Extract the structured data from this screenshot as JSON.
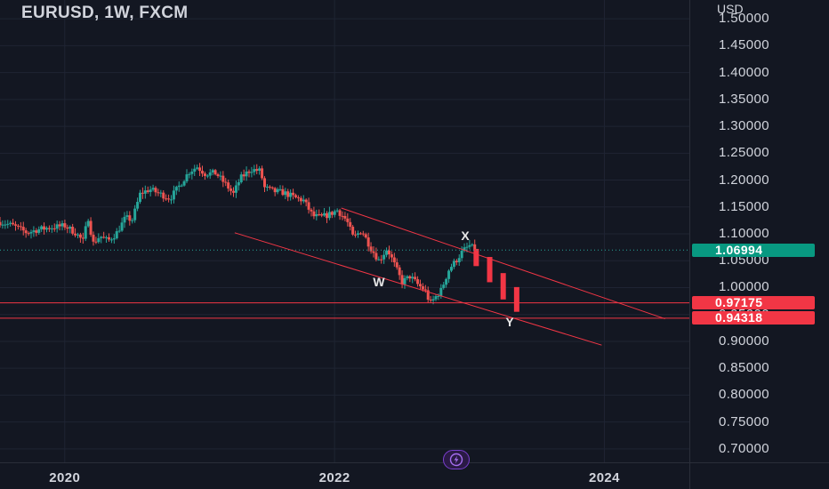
{
  "header": {
    "title": "EURUSD, 1W, FXCM",
    "currency": "USD"
  },
  "price_labels": [
    {
      "value": "1.06994",
      "color": "#089981"
    },
    {
      "value": "0.97175",
      "color": "#f23645"
    },
    {
      "value": "0.94318",
      "color": "#f23645"
    }
  ],
  "badge": {
    "icon": "lightning-icon",
    "color": "#a66ff0"
  },
  "colors": {
    "bull": "#26a69a",
    "bear": "#ef5350",
    "line": "#f23645",
    "background": "#131722"
  },
  "chart_data": {
    "type": "candlestick",
    "symbol": "EURUSD",
    "interval": "1W",
    "source": "FXCM",
    "y_axis": {
      "range": [
        0.675,
        1.535
      ],
      "ticks": [
        "1.50000",
        "1.45000",
        "1.40000",
        "1.35000",
        "1.30000",
        "1.25000",
        "1.20000",
        "1.15000",
        "1.10000",
        "1.05000",
        "1.00000",
        "0.95000",
        "0.90000",
        "0.85000",
        "0.80000",
        "0.75000",
        "0.70000"
      ],
      "side": "right"
    },
    "x_axis": {
      "range": [
        2019.52,
        2024.63
      ],
      "ticks": [
        {
          "label": "2020",
          "value": 2020
        },
        {
          "label": "2022",
          "value": 2022
        },
        {
          "label": "2024",
          "value": 2024
        }
      ]
    },
    "grid": true,
    "price_path": [
      [
        2019.52,
        1.122
      ],
      [
        2019.62,
        1.115
      ],
      [
        2019.72,
        1.102
      ],
      [
        2019.8,
        1.108
      ],
      [
        2019.9,
        1.112
      ],
      [
        2020.0,
        1.115
      ],
      [
        2020.08,
        1.102
      ],
      [
        2020.14,
        1.085
      ],
      [
        2020.17,
        1.135
      ],
      [
        2020.21,
        1.082
      ],
      [
        2020.26,
        1.096
      ],
      [
        2020.32,
        1.087
      ],
      [
        2020.38,
        1.1
      ],
      [
        2020.45,
        1.13
      ],
      [
        2020.5,
        1.126
      ],
      [
        2020.56,
        1.175
      ],
      [
        2020.63,
        1.183
      ],
      [
        2020.7,
        1.175
      ],
      [
        2020.78,
        1.166
      ],
      [
        2020.84,
        1.186
      ],
      [
        2020.92,
        1.215
      ],
      [
        2020.98,
        1.225
      ],
      [
        2021.04,
        1.212
      ],
      [
        2021.12,
        1.213
      ],
      [
        2021.2,
        1.19
      ],
      [
        2021.25,
        1.174
      ],
      [
        2021.3,
        1.203
      ],
      [
        2021.38,
        1.22
      ],
      [
        2021.45,
        1.217
      ],
      [
        2021.48,
        1.186
      ],
      [
        2021.55,
        1.179
      ],
      [
        2021.62,
        1.177
      ],
      [
        2021.7,
        1.168
      ],
      [
        2021.77,
        1.162
      ],
      [
        2021.84,
        1.133
      ],
      [
        2021.9,
        1.131
      ],
      [
        2021.96,
        1.136
      ],
      [
        2022.02,
        1.144
      ],
      [
        2022.09,
        1.125
      ],
      [
        2022.14,
        1.092
      ],
      [
        2022.2,
        1.107
      ],
      [
        2022.27,
        1.073
      ],
      [
        2022.33,
        1.05
      ],
      [
        2022.39,
        1.073
      ],
      [
        2022.44,
        1.045
      ],
      [
        2022.5,
        1.01
      ],
      [
        2022.56,
        1.021
      ],
      [
        2022.62,
        1.005
      ],
      [
        2022.67,
        0.995
      ],
      [
        2022.71,
        0.97
      ],
      [
        2022.74,
        0.98
      ],
      [
        2022.79,
        0.995
      ],
      [
        2022.85,
        1.035
      ],
      [
        2022.9,
        1.05
      ],
      [
        2022.95,
        1.068
      ],
      [
        2023.0,
        1.078
      ],
      [
        2023.04,
        1.071
      ]
    ],
    "projection_bars": [
      {
        "x": 2023.05,
        "open": 1.072,
        "close": 1.04
      },
      {
        "x": 2023.15,
        "open": 1.057,
        "close": 1.01
      },
      {
        "x": 2023.25,
        "open": 1.027,
        "close": 0.978
      },
      {
        "x": 2023.35,
        "open": 1.001,
        "close": 0.955
      }
    ],
    "last_price": 1.06994,
    "horizontal_levels": [
      0.97175,
      0.94318
    ],
    "trend_lines": [
      {
        "from": [
          2022.05,
          1.148
        ],
        "to": [
          2024.45,
          0.942
        ]
      },
      {
        "from": [
          2021.26,
          1.102
        ],
        "to": [
          2023.98,
          0.893
        ]
      }
    ],
    "annotations": [
      {
        "text": "X",
        "x": 2022.97,
        "y": 1.097
      },
      {
        "text": "W",
        "x": 2022.33,
        "y": 1.01
      },
      {
        "text": "Y",
        "x": 2023.3,
        "y": 0.937
      }
    ]
  }
}
